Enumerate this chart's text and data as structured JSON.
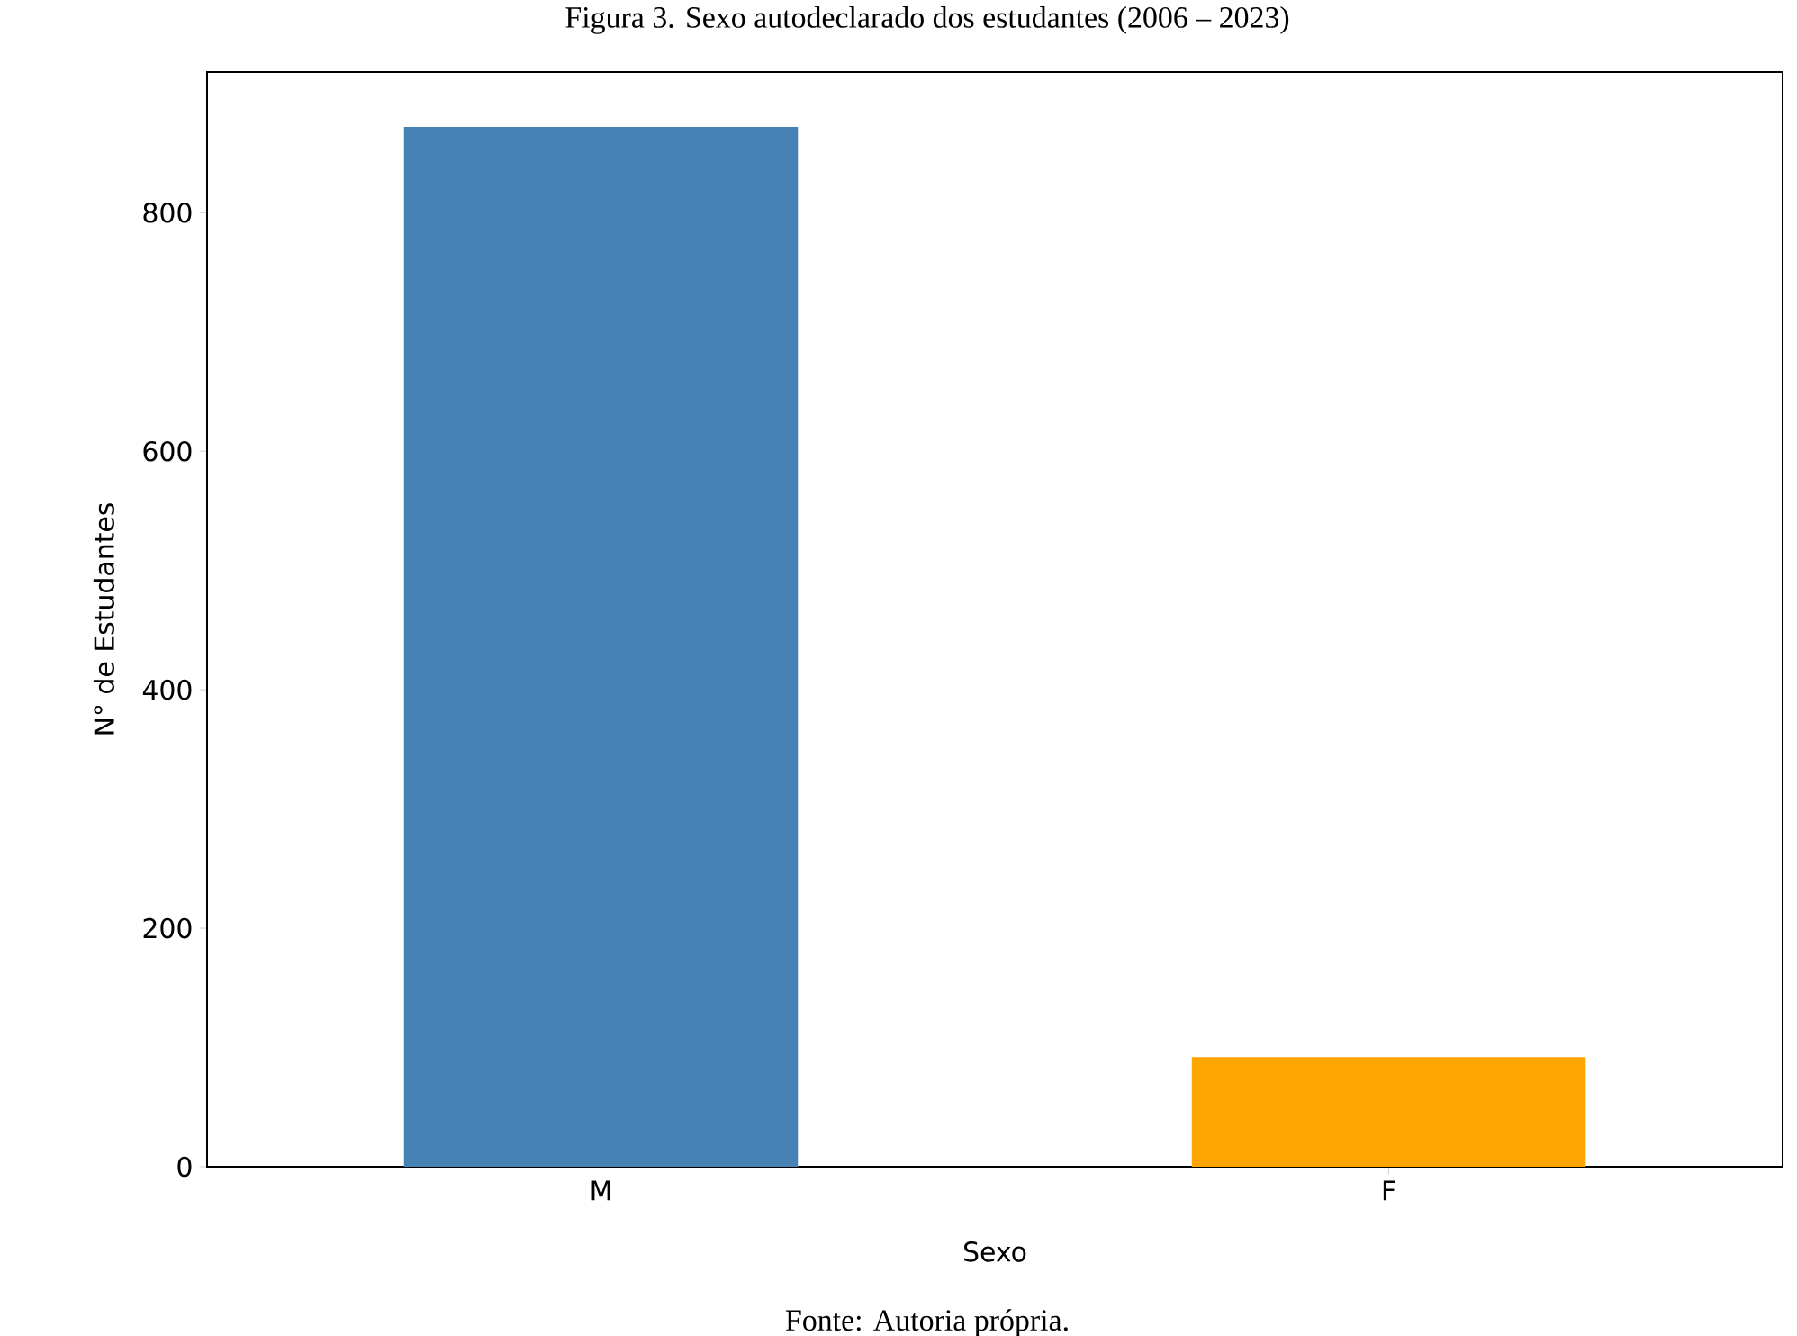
{
  "chart_data": {
    "type": "bar",
    "title": "Figura 3. Sexo autodeclarado dos estudantes (2006 – 2023)",
    "xlabel": "Sexo",
    "ylabel": "N° de Estudantes",
    "categories": [
      "M",
      "F"
    ],
    "values": [
      872,
      92
    ],
    "colors": [
      "#4682b4",
      "#ffa500"
    ],
    "ylim": [
      0,
      918
    ],
    "yticks": [
      0,
      200,
      400,
      600,
      800
    ],
    "grid": false,
    "annotations": [
      "Fonte: Autoria própria."
    ]
  }
}
